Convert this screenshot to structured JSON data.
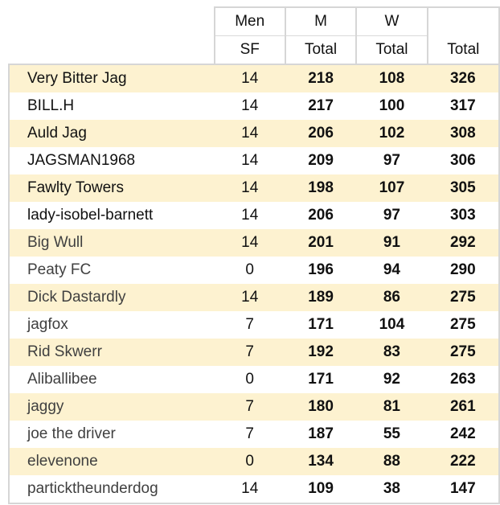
{
  "headers": {
    "row1": [
      "Men",
      "M",
      "W",
      ""
    ],
    "row2": [
      "SF",
      "Total",
      "Total",
      "Total"
    ]
  },
  "rows": [
    {
      "name": "Very Bitter Jag",
      "sf": "14",
      "m": "218",
      "w": "108",
      "total": "326"
    },
    {
      "name": "BILL.H",
      "sf": "14",
      "m": "217",
      "w": "100",
      "total": "317"
    },
    {
      "name": "Auld Jag",
      "sf": "14",
      "m": "206",
      "w": "102",
      "total": "308"
    },
    {
      "name": "JAGSMAN1968",
      "sf": "14",
      "m": "209",
      "w": "97",
      "total": "306"
    },
    {
      "name": "Fawlty Towers",
      "sf": "14",
      "m": "198",
      "w": "107",
      "total": "305"
    },
    {
      "name": "lady-isobel-barnett",
      "sf": "14",
      "m": "206",
      "w": "97",
      "total": "303"
    },
    {
      "name": "Big Wull",
      "sf": "14",
      "m": "201",
      "w": "91",
      "total": "292"
    },
    {
      "name": "Peaty FC",
      "sf": "0",
      "m": "196",
      "w": "94",
      "total": "290"
    },
    {
      "name": "Dick Dastardly",
      "sf": "14",
      "m": "189",
      "w": "86",
      "total": "275"
    },
    {
      "name": "jagfox",
      "sf": "7",
      "m": "171",
      "w": "104",
      "total": "275"
    },
    {
      "name": "Rid Skwerr",
      "sf": "7",
      "m": "192",
      "w": "83",
      "total": "275"
    },
    {
      "name": "Aliballibee",
      "sf": "0",
      "m": "171",
      "w": "92",
      "total": "263"
    },
    {
      "name": "jaggy",
      "sf": "7",
      "m": "180",
      "w": "81",
      "total": "261"
    },
    {
      "name": "joe the driver",
      "sf": "7",
      "m": "187",
      "w": "55",
      "total": "242"
    },
    {
      "name": "elevenone",
      "sf": "0",
      "m": "134",
      "w": "88",
      "total": "222"
    },
    {
      "name": "partickthe​underdog",
      "sf": "14",
      "m": "109",
      "w": "38",
      "total": "147"
    }
  ],
  "colors": {
    "stripe": "#fdf2d0",
    "border": "#d6d6d6"
  }
}
